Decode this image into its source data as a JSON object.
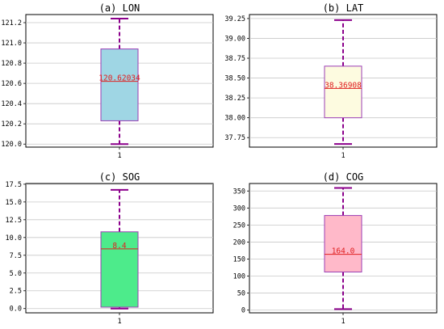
{
  "colors": {
    "box_edge": "#9c3fb5",
    "whisker": "#8b008b",
    "median_line": "#e02020",
    "median_label": "#e02020",
    "grid": "#c8c8c8"
  },
  "chart_data": [
    {
      "type": "box",
      "title": "(a) LON",
      "categories": [
        "1"
      ],
      "fill": "#9fd6e4",
      "ylim": [
        119.97,
        121.28
      ],
      "yticks": [
        120.0,
        120.2,
        120.4,
        120.6,
        120.8,
        121.0,
        121.2
      ],
      "ytick_labels": [
        "120.0",
        "120.2",
        "120.4",
        "120.6",
        "120.8",
        "121.0",
        "121.2"
      ],
      "grid": true,
      "whisker_low": 120.0,
      "q1": 120.23,
      "median": 120.62034,
      "q3": 120.94,
      "whisker_high": 121.24,
      "median_label": "120.62034"
    },
    {
      "type": "box",
      "title": "(b) LAT",
      "categories": [
        "1"
      ],
      "fill": "#fdfbe0",
      "ylim": [
        37.63,
        39.3
      ],
      "yticks": [
        37.75,
        38.0,
        38.25,
        38.5,
        38.75,
        39.0,
        39.25
      ],
      "ytick_labels": [
        "37.75",
        "38.00",
        "38.25",
        "38.50",
        "38.75",
        "39.00",
        "39.25"
      ],
      "grid": true,
      "whisker_low": 37.67,
      "q1": 38.0,
      "median": 38.36908,
      "q3": 38.65,
      "whisker_high": 39.23,
      "median_label": "38.36908"
    },
    {
      "type": "box",
      "title": "(c) SOG",
      "categories": [
        "1"
      ],
      "fill": "#4deb8b",
      "ylim": [
        -0.6,
        17.6
      ],
      "yticks": [
        0.0,
        2.5,
        5.0,
        7.5,
        10.0,
        12.5,
        15.0,
        17.5
      ],
      "ytick_labels": [
        "0.0",
        "2.5",
        "5.0",
        "7.5",
        "10.0",
        "12.5",
        "15.0",
        "17.5"
      ],
      "grid": true,
      "whisker_low": 0.0,
      "q1": 0.2,
      "median": 8.4,
      "q3": 10.8,
      "whisker_high": 16.7,
      "median_label": "8.4"
    },
    {
      "type": "box",
      "title": "(d) COG",
      "categories": [
        "1"
      ],
      "fill": "#ffb9c9",
      "ylim": [
        -8,
        372
      ],
      "yticks": [
        0,
        50,
        100,
        150,
        200,
        250,
        300,
        350
      ],
      "ytick_labels": [
        "0",
        "50",
        "100",
        "150",
        "200",
        "250",
        "300",
        "350"
      ],
      "grid": true,
      "whisker_low": 3,
      "q1": 112,
      "median": 164.0,
      "q3": 278,
      "whisker_high": 359,
      "median_label": "164.0"
    }
  ]
}
